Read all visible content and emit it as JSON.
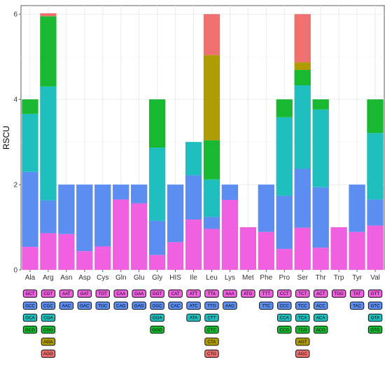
{
  "chart_data": {
    "type": "bar",
    "stacked": true,
    "title": "",
    "xlabel": "",
    "ylabel": "RSCU",
    "ylim": [
      0,
      6.2
    ],
    "yticks": [
      0,
      2,
      4,
      6
    ],
    "grid": true,
    "legend": "none",
    "categories": [
      "Ala",
      "Arg",
      "Asn",
      "Asp",
      "Cys",
      "Gln",
      "Glu",
      "Gly",
      "HIS",
      "Ile",
      "Leu",
      "Lys",
      "Met",
      "Phe",
      "Pro",
      "Ser",
      "Thr",
      "Trp",
      "Tyr",
      "Val"
    ],
    "stack_colors": [
      "#f060e0",
      "#5b8ef0",
      "#1fbfbf",
      "#18b830",
      "#b09c00",
      "#f07070"
    ],
    "bars": [
      [
        0.54,
        1.76,
        1.36,
        0.34
      ],
      [
        0.86,
        0.77,
        2.67,
        1.65,
        0.0,
        0.07
      ],
      [
        0.84,
        1.16
      ],
      [
        0.44,
        1.56
      ],
      [
        0.55,
        1.45
      ],
      [
        1.65,
        0.35
      ],
      [
        1.56,
        0.44
      ],
      [
        0.35,
        0.8,
        1.72,
        1.13
      ],
      [
        0.65,
        1.35
      ],
      [
        1.18,
        1.04,
        0.78
      ],
      [
        0.96,
        0.28,
        0.88,
        0.92,
        2.0,
        0.96
      ],
      [
        1.64,
        0.36
      ],
      [
        1.0
      ],
      [
        0.89,
        1.11
      ],
      [
        0.49,
        1.25,
        1.84,
        0.42
      ],
      [
        0.99,
        1.38,
        1.96,
        0.36,
        0.18,
        1.13
      ],
      [
        0.52,
        1.42,
        1.82,
        0.24
      ],
      [
        1.0
      ],
      [
        0.89,
        1.11
      ],
      [
        1.04,
        0.61,
        1.56,
        0.79
      ]
    ],
    "codons": [
      [
        "GCT",
        "GCC",
        "GCA",
        "GCG"
      ],
      [
        "CGT",
        "CGC",
        "CGA",
        "CGG",
        "AGA",
        "AGG"
      ],
      [
        "AAT",
        "AAC"
      ],
      [
        "GAT",
        "GAC"
      ],
      [
        "TGT",
        "TGC"
      ],
      [
        "CAA",
        "CAG"
      ],
      [
        "GAA",
        "GAG"
      ],
      [
        "GGT",
        "GGC",
        "GGA",
        "GGG"
      ],
      [
        "CAT",
        "CAC"
      ],
      [
        "ATT",
        "ATC",
        "ATA"
      ],
      [
        "TTA",
        "TTG",
        "CTT",
        "CTC",
        "CTA",
        "CTG"
      ],
      [
        "AAA",
        "AAG"
      ],
      [
        "ATG"
      ],
      [
        "TTT",
        "TTC"
      ],
      [
        "CCT",
        "CCC",
        "CCA",
        "CCG"
      ],
      [
        "TCT",
        "TCC",
        "TCA",
        "TCG",
        "AGT",
        "AGC"
      ],
      [
        "ACT",
        "ACC",
        "ACA",
        "ACG"
      ],
      [
        "TGG"
      ],
      [
        "TAT",
        "TAC"
      ],
      [
        "GTT",
        "GTC",
        "GTA",
        "GTG"
      ]
    ]
  }
}
